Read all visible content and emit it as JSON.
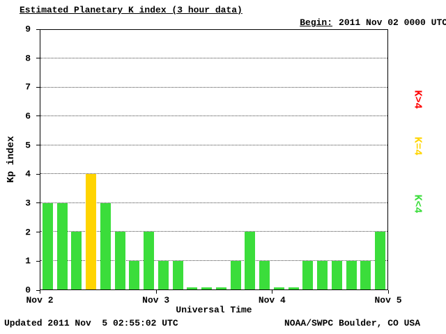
{
  "header": {
    "title": "Estimated Planetary K index (3 hour data)",
    "begin_label": "Begin:",
    "begin_value": "2011 Nov 02 0000 UTC"
  },
  "footer": {
    "updated": "Updated 2011 Nov  5 02:55:02 UTC",
    "source": "NOAA/SWPC Boulder, CO USA"
  },
  "legend": [
    {
      "label": "K>4",
      "color": "#ff0000"
    },
    {
      "label": "K=4",
      "color": "#ffd400"
    },
    {
      "label": "K<4",
      "color": "#3bdd3b"
    }
  ],
  "chart_data": {
    "type": "bar",
    "title": "Estimated Planetary K index (3 hour data)",
    "xlabel": "Universal Time",
    "ylabel": "Kp index",
    "ylim": [
      0,
      9
    ],
    "yticks": [
      0,
      1,
      2,
      3,
      4,
      5,
      6,
      7,
      8,
      9
    ],
    "xticklabels": [
      "Nov 2",
      "Nov 3",
      "Nov 4",
      "Nov 5"
    ],
    "grid": "horizontal dotted",
    "legend_position": "right",
    "bin_hours": 3,
    "begin": "2011 Nov 02 0000 UTC",
    "values": [
      3,
      3,
      2,
      4,
      3,
      2,
      1,
      2,
      1,
      1,
      0,
      0,
      0,
      1,
      2,
      1,
      0,
      0,
      1,
      1,
      1,
      1,
      1,
      2
    ],
    "colors_rule": {
      "lt4": "#3bdd3b",
      "eq4": "#ffd400",
      "gt4": "#ff0000"
    }
  }
}
